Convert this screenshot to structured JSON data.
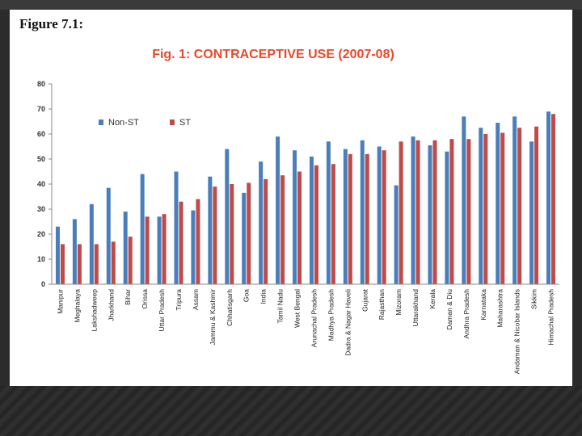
{
  "figure_label": "Figure 7.1:",
  "chart_data": {
    "type": "bar",
    "title": "Fig. 1: CONTRACEPTIVE USE (2007-08)",
    "xlabel": "",
    "ylabel": "",
    "ylim": [
      0,
      80
    ],
    "yticks": [
      0,
      10,
      20,
      30,
      40,
      50,
      60,
      70,
      80
    ],
    "legend_position": "top-left",
    "categories": [
      "Manipur",
      "Meghalaya",
      "Lakshadweep",
      "Jharkhand",
      "Bihar",
      "Orissa",
      "Uttar Pradesh",
      "Tripura",
      "Assam",
      "Jammu & Kashmir",
      "Chhatisgarh",
      "Goa",
      "India",
      "Tamil Nadu",
      "West Bengal",
      "Arunachal Pradesh",
      "Madhya Pradesh",
      "Dadra & Nagar Haveli",
      "Gujarat",
      "Rajasthan",
      "Mizoram",
      "Uttarakhand",
      "Kerala",
      "Daman & Diu",
      "Andhra Pradesh",
      "Karnataka",
      "Maharashtra",
      "Andaman & Nicobar Islands",
      "Sikkim",
      "Himachal Pradesh"
    ],
    "series": [
      {
        "name": "Non-ST",
        "color": "#4a7ebb",
        "values": [
          23,
          26,
          32,
          38.5,
          29,
          44,
          27,
          45,
          29.5,
          43,
          54,
          36.5,
          49,
          59,
          53.5,
          51,
          57,
          54,
          57.5,
          55,
          39.5,
          59,
          55.5,
          53,
          67,
          62.5,
          64.5,
          67,
          57,
          69
        ]
      },
      {
        "name": "ST",
        "color": "#be4b48",
        "values": [
          16,
          16,
          16,
          17,
          19,
          27,
          28,
          33,
          34,
          39,
          40,
          40.5,
          42,
          43.5,
          45,
          47.5,
          48,
          52,
          52,
          53.5,
          57,
          57.5,
          57.5,
          58,
          58,
          60,
          60.5,
          62.5,
          63,
          68
        ]
      }
    ]
  }
}
